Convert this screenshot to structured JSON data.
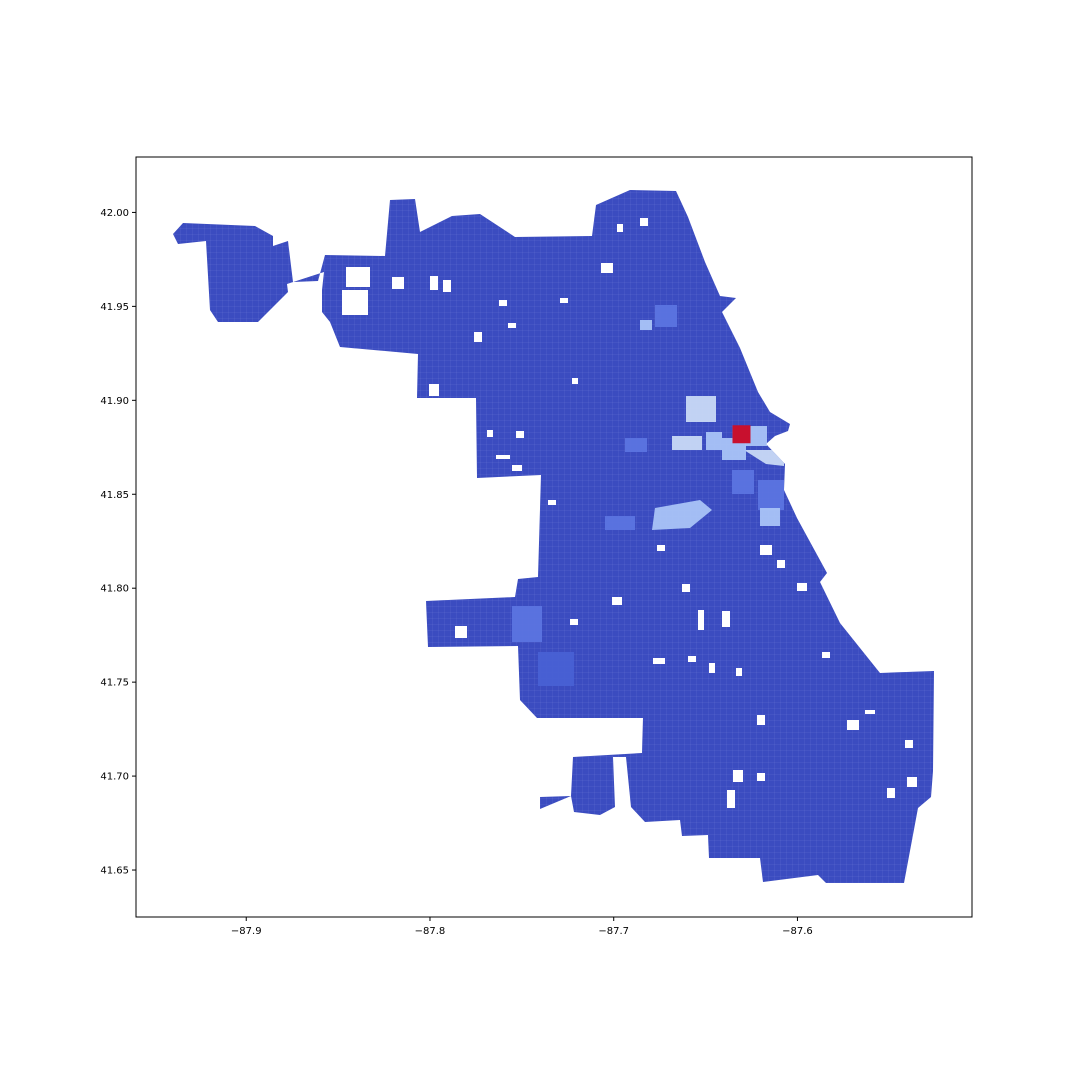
{
  "chart_data": {
    "type": "choropleth",
    "title": "",
    "xlabel": "",
    "ylabel": "",
    "xlim": [
      -87.96,
      -87.505
    ],
    "ylim": [
      41.625,
      42.0295
    ],
    "xticks": [
      -87.9,
      -87.8,
      -87.7,
      -87.6
    ],
    "xtick_labels": [
      "−87.9",
      "−87.8",
      "−87.7",
      "−87.6"
    ],
    "yticks": [
      41.65,
      41.7,
      41.75,
      41.8,
      41.85,
      41.9,
      41.95,
      42.0
    ],
    "ytick_labels": [
      "41.65",
      "41.70",
      "41.75",
      "41.80",
      "41.85",
      "41.90",
      "41.95",
      "42.00"
    ],
    "grid": false,
    "legend": "none",
    "colormap": "coolwarm",
    "colors": {
      "base": "#3b4cc0",
      "edge": "#7b8ad8",
      "mid": "#5b74e0",
      "light": "#a9c3f7",
      "pale": "#c8d9f5",
      "hot": "#c8102e"
    },
    "hotspot": {
      "lon": -87.631,
      "lat": 41.883,
      "level": "max"
    }
  }
}
